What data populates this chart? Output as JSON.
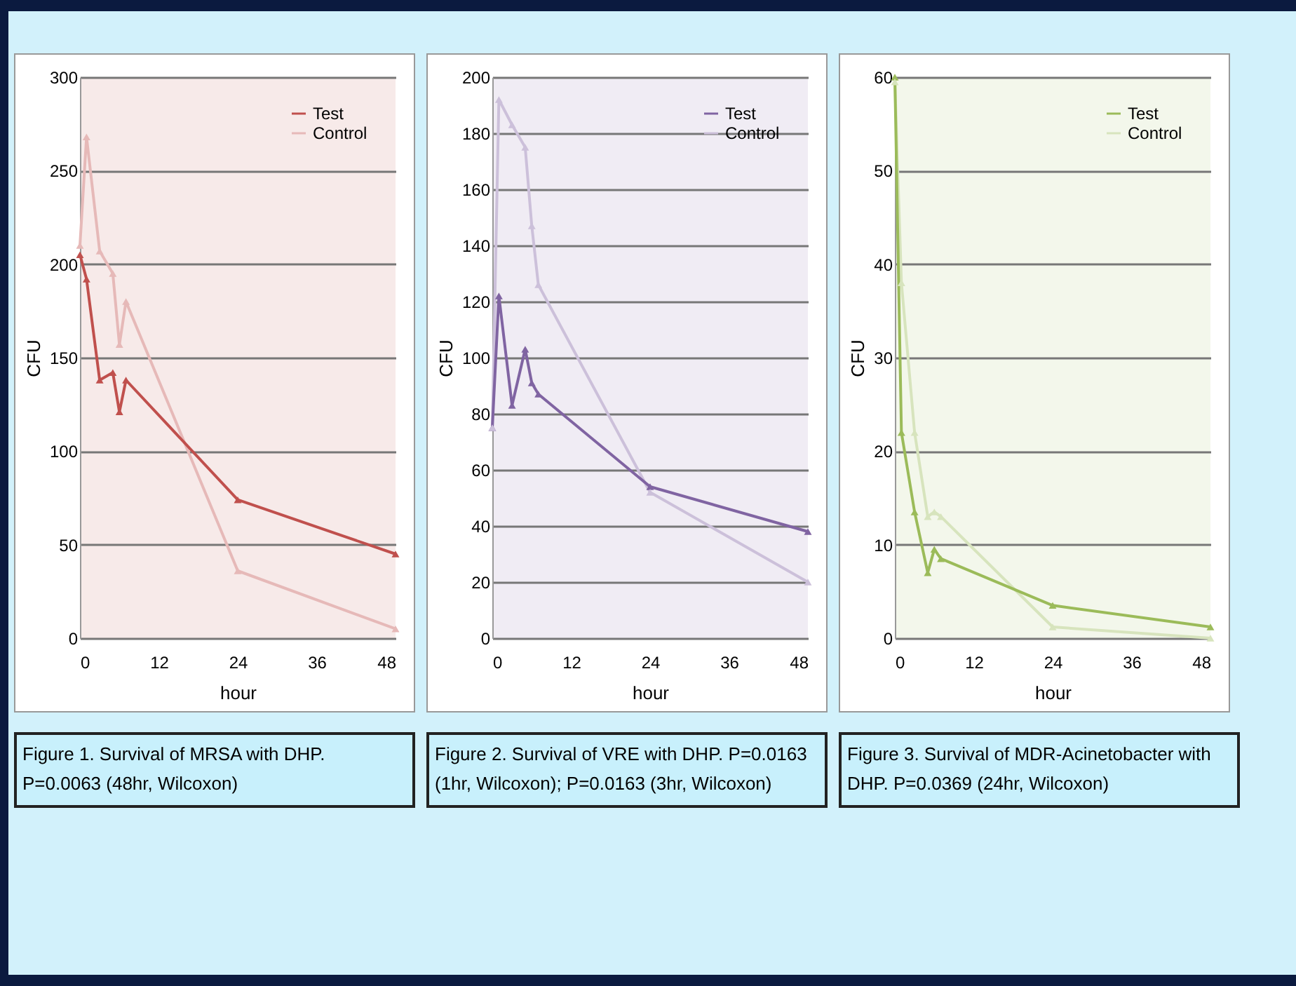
{
  "chart_data": [
    {
      "type": "line",
      "xlabel": "hour",
      "ylabel": "CFU",
      "x": [
        0,
        1,
        3,
        5,
        6,
        7,
        24,
        48
      ],
      "xlim": [
        0,
        48
      ],
      "xticks": [
        0,
        12,
        24,
        36,
        48
      ],
      "ylim": [
        0,
        300
      ],
      "yticks": [
        0,
        50,
        100,
        150,
        200,
        250,
        300
      ],
      "grid": "y",
      "legend": "top right",
      "marker": "triangle",
      "series": [
        {
          "name": "Test",
          "color": "#c0504d",
          "values": [
            205,
            192,
            138,
            142,
            121,
            138,
            74,
            45
          ]
        },
        {
          "name": "Control",
          "color": "#e6b9b8",
          "values": [
            210,
            268,
            207,
            195,
            157,
            180,
            36,
            5
          ]
        }
      ],
      "annotations": [
        "Figure 1. Survival of MRSA with DHP. P=0.0063 (48hr, Wilcoxon)"
      ]
    },
    {
      "type": "line",
      "xlabel": "hour",
      "ylabel": "CFU",
      "x": [
        0,
        1,
        3,
        5,
        6,
        7,
        24,
        48
      ],
      "xlim": [
        0,
        48
      ],
      "xticks": [
        0,
        12,
        24,
        36,
        48
      ],
      "ylim": [
        0,
        200
      ],
      "yticks": [
        0,
        20,
        40,
        60,
        80,
        100,
        120,
        140,
        160,
        180,
        200
      ],
      "grid": "y",
      "legend": "top right",
      "marker": "triangle",
      "series": [
        {
          "name": "Test",
          "color": "#8064a2",
          "values": [
            75,
            122,
            83,
            103,
            91,
            87,
            54,
            38
          ]
        },
        {
          "name": "Control",
          "color": "#ccc0da",
          "values": [
            75,
            192,
            183,
            175,
            147,
            126,
            52,
            20
          ]
        }
      ],
      "annotations": [
        "Figure 2. Survival of VRE with DHP.  P=0.0163 (1hr, Wilcoxon); P=0.0163 (3hr, Wilcoxon)"
      ]
    },
    {
      "type": "line",
      "xlabel": "hour",
      "ylabel": "CFU",
      "x": [
        0,
        1,
        3,
        5,
        6,
        7,
        24,
        48
      ],
      "xlim": [
        0,
        48
      ],
      "xticks": [
        0,
        12,
        24,
        36,
        48
      ],
      "ylim": [
        0,
        60
      ],
      "yticks": [
        0,
        10,
        20,
        30,
        40,
        50,
        60
      ],
      "grid": "y",
      "legend": "top right",
      "marker": "triangle",
      "series": [
        {
          "name": "Test",
          "color": "#9bbb59",
          "values": [
            60,
            22,
            13.5,
            7,
            9.5,
            8.5,
            3.5,
            1.2
          ]
        },
        {
          "name": "Control",
          "color": "#d7e4bd",
          "values": [
            59.5,
            38,
            22,
            13,
            13.5,
            13,
            1.2,
            0
          ]
        }
      ],
      "annotations": [
        "Figure 3. Survival of MDR-Acinetobacter with DHP.  P=0.0369 (24hr, Wilcoxon)"
      ]
    }
  ]
}
